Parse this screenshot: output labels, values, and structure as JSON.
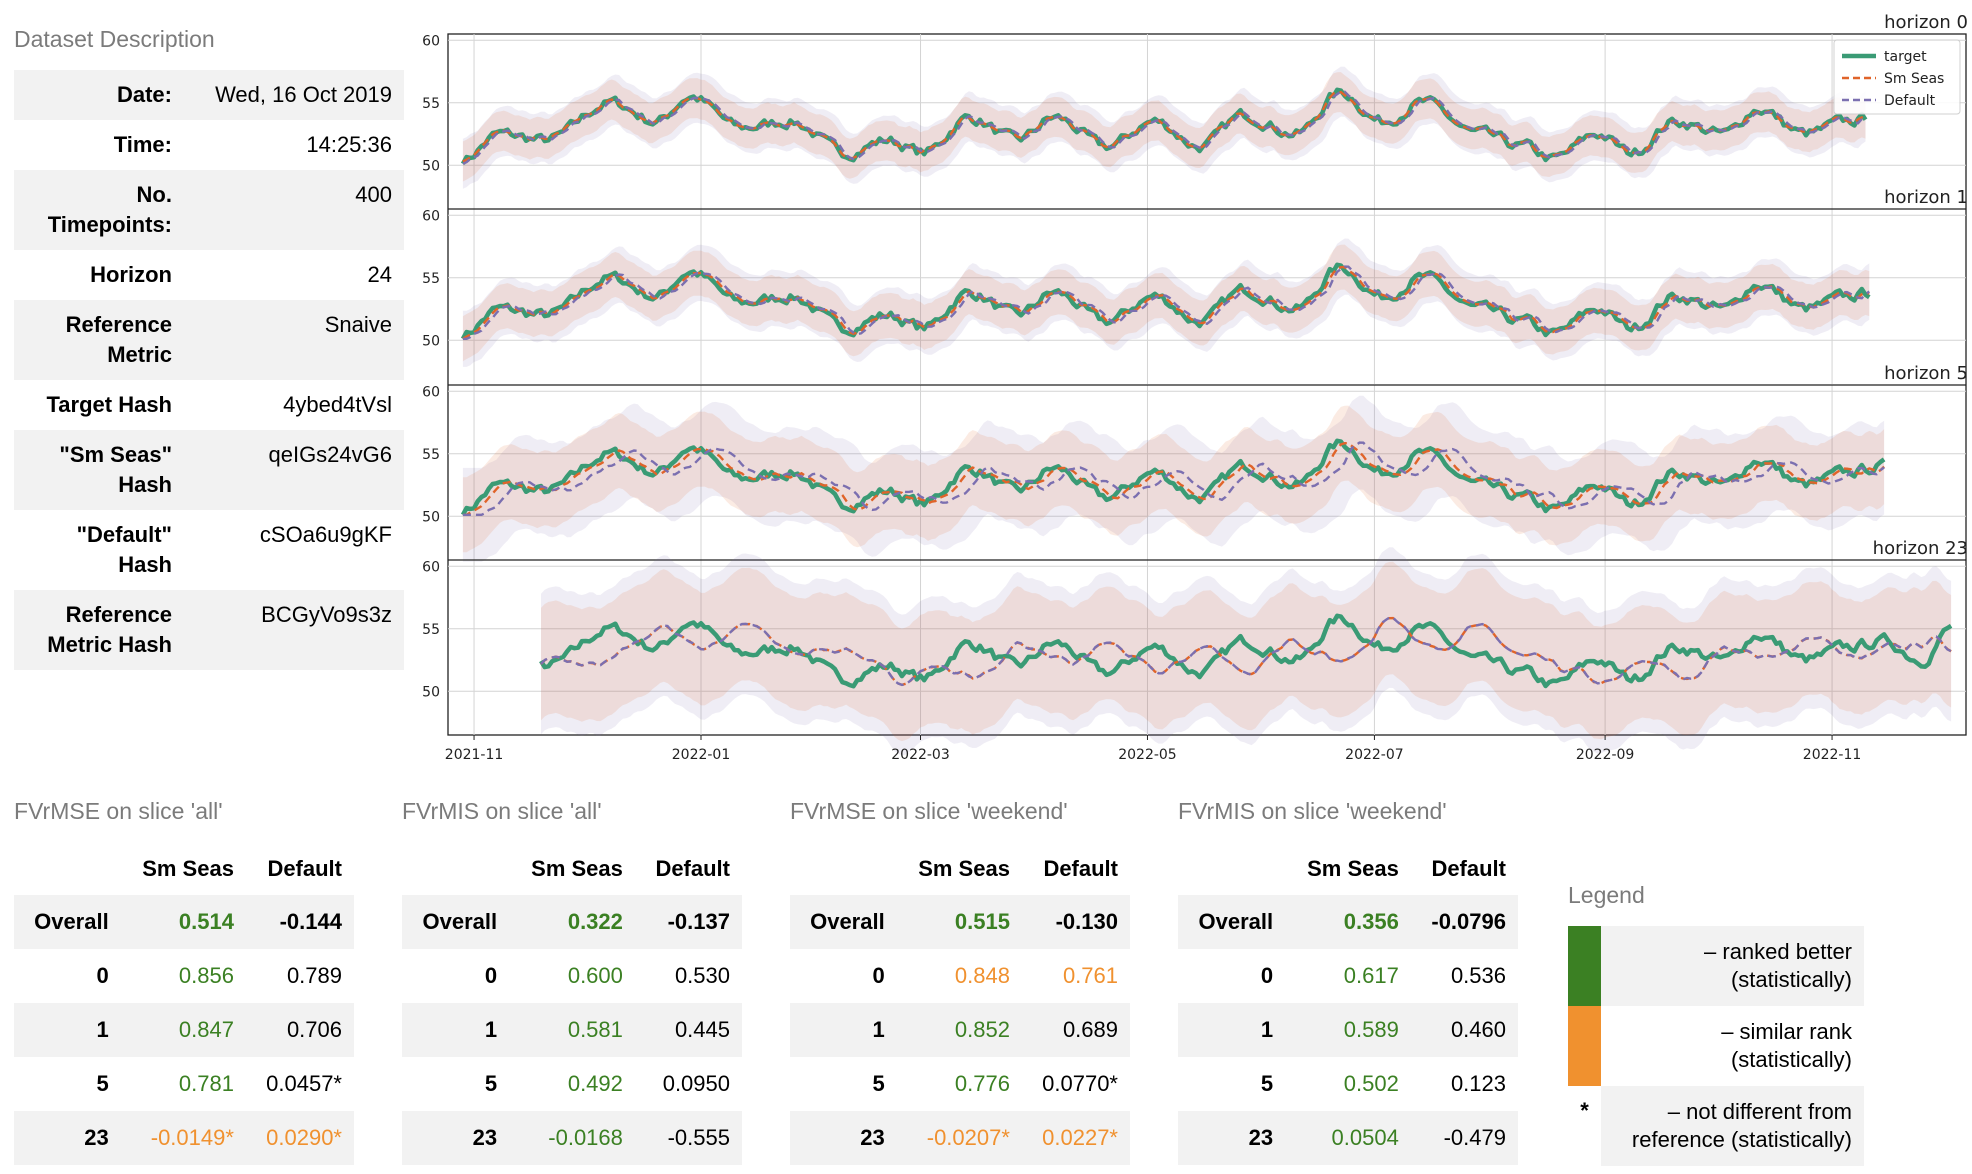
{
  "description": {
    "title": "Dataset Description",
    "rows": [
      {
        "key": "Date:",
        "value": "Wed, 16 Oct 2019"
      },
      {
        "key": "Time:",
        "value": "14:25:36"
      },
      {
        "key": "No. Timepoints:",
        "value": "400"
      },
      {
        "key": "Horizon",
        "value": "24"
      },
      {
        "key": "Reference Metric",
        "value": "Snaive"
      },
      {
        "key": "Target Hash",
        "value": "4ybed4tVsl"
      },
      {
        "key": "\"Sm Seas\" Hash",
        "value": "qeIGs24vG6"
      },
      {
        "key": "\"Default\" Hash",
        "value": "cSOa6u9gKF"
      },
      {
        "key": "Reference Metric Hash",
        "value": "BCGyVo9s3z"
      }
    ]
  },
  "colors": {
    "target": "#3a9b75",
    "sm_seas": "#e0642a",
    "default": "#7b6fb0",
    "better": "#3b8023",
    "similar": "#f0912f"
  },
  "chart_data": {
    "type": "line",
    "x_tick_labels": [
      "2021-11",
      "2022-01",
      "2022-03",
      "2022-05",
      "2022-07",
      "2022-09",
      "2022-11"
    ],
    "y_ticks": [
      50,
      55,
      60
    ],
    "ylim": [
      46.5,
      60.5
    ],
    "legend": [
      "target",
      "Sm Seas",
      "Default"
    ],
    "legend_position": "top-right",
    "series_names": [
      "target",
      "Sm Seas",
      "Default"
    ],
    "panels": [
      {
        "title": "horizon 0",
        "start": "2021-10-29",
        "end": "2022-11-10",
        "lag_default": 1,
        "lag_sm": 0,
        "band": 1.6
      },
      {
        "title": "horizon 1",
        "start": "2021-10-29",
        "end": "2022-11-11",
        "lag_default": 2,
        "lag_sm": 1,
        "band": 1.8
      },
      {
        "title": "horizon 5",
        "start": "2021-10-29",
        "end": "2022-11-15",
        "lag_default": 6,
        "lag_sm": 2,
        "band": 3.0
      },
      {
        "title": "horizon 23",
        "start": "2021-11-19",
        "end": "2022-12-03",
        "lag_default": 14,
        "lag_sm": 14,
        "band": 4.5
      }
    ],
    "target_anchor_dates": [
      "2021-10-29",
      "2021-11-08",
      "2021-11-20",
      "2021-12-08",
      "2021-12-20",
      "2021-12-29",
      "2022-01-12",
      "2022-01-25",
      "2022-02-09",
      "2022-02-20",
      "2022-03-02",
      "2022-03-14",
      "2022-03-27",
      "2022-04-06",
      "2022-04-20",
      "2022-05-03",
      "2022-05-15",
      "2022-05-27",
      "2022-06-10",
      "2022-06-22",
      "2022-07-03",
      "2022-07-14",
      "2022-07-29",
      "2022-08-10",
      "2022-08-18",
      "2022-08-30",
      "2022-09-08",
      "2022-09-20",
      "2022-10-03",
      "2022-10-12",
      "2022-10-25",
      "2022-11-05",
      "2022-11-15",
      "2022-11-25",
      "2022-12-03"
    ],
    "target_anchor_values": [
      50.5,
      52.5,
      52.0,
      55.0,
      53.5,
      55.5,
      53.0,
      53.5,
      51.0,
      52.0,
      51.0,
      53.8,
      52.0,
      53.8,
      51.5,
      53.5,
      51.5,
      54.0,
      52.5,
      55.8,
      53.5,
      55.0,
      52.5,
      51.5,
      50.5,
      52.5,
      51.0,
      53.5,
      52.5,
      54.5,
      52.5,
      53.5,
      54.0,
      52.5,
      55.0
    ]
  },
  "metric_tables": [
    {
      "title": "FVrMSE on slice 'all'",
      "columns": [
        "Sm Seas",
        "Default"
      ],
      "rows": [
        {
          "label": "Overall",
          "values": [
            "0.514",
            "-0.144"
          ],
          "classes": [
            "better",
            "none"
          ]
        },
        {
          "label": "0",
          "values": [
            "0.856",
            "0.789"
          ],
          "classes": [
            "better",
            "none"
          ]
        },
        {
          "label": "1",
          "values": [
            "0.847",
            "0.706"
          ],
          "classes": [
            "better",
            "none"
          ]
        },
        {
          "label": "5",
          "values": [
            "0.781",
            "0.0457*"
          ],
          "classes": [
            "better",
            "none"
          ]
        },
        {
          "label": "23",
          "values": [
            "-0.0149*",
            "0.0290*"
          ],
          "classes": [
            "similar",
            "similar"
          ]
        }
      ]
    },
    {
      "title": "FVrMIS on slice 'all'",
      "columns": [
        "Sm Seas",
        "Default"
      ],
      "rows": [
        {
          "label": "Overall",
          "values": [
            "0.322",
            "-0.137"
          ],
          "classes": [
            "better",
            "none"
          ]
        },
        {
          "label": "0",
          "values": [
            "0.600",
            "0.530"
          ],
          "classes": [
            "better",
            "none"
          ]
        },
        {
          "label": "1",
          "values": [
            "0.581",
            "0.445"
          ],
          "classes": [
            "better",
            "none"
          ]
        },
        {
          "label": "5",
          "values": [
            "0.492",
            "0.0950"
          ],
          "classes": [
            "better",
            "none"
          ]
        },
        {
          "label": "23",
          "values": [
            "-0.0168",
            "-0.555"
          ],
          "classes": [
            "better",
            "none"
          ]
        }
      ]
    },
    {
      "title": "FVrMSE on slice 'weekend'",
      "columns": [
        "Sm Seas",
        "Default"
      ],
      "rows": [
        {
          "label": "Overall",
          "values": [
            "0.515",
            "-0.130"
          ],
          "classes": [
            "better",
            "none"
          ]
        },
        {
          "label": "0",
          "values": [
            "0.848",
            "0.761"
          ],
          "classes": [
            "similar",
            "similar"
          ]
        },
        {
          "label": "1",
          "values": [
            "0.852",
            "0.689"
          ],
          "classes": [
            "better",
            "none"
          ]
        },
        {
          "label": "5",
          "values": [
            "0.776",
            "0.0770*"
          ],
          "classes": [
            "better",
            "none"
          ]
        },
        {
          "label": "23",
          "values": [
            "-0.0207*",
            "0.0227*"
          ],
          "classes": [
            "similar",
            "similar"
          ]
        }
      ]
    },
    {
      "title": "FVrMIS on slice 'weekend'",
      "columns": [
        "Sm Seas",
        "Default"
      ],
      "rows": [
        {
          "label": "Overall",
          "values": [
            "0.356",
            "-0.0796"
          ],
          "classes": [
            "better",
            "none"
          ]
        },
        {
          "label": "0",
          "values": [
            "0.617",
            "0.536"
          ],
          "classes": [
            "better",
            "none"
          ]
        },
        {
          "label": "1",
          "values": [
            "0.589",
            "0.460"
          ],
          "classes": [
            "better",
            "none"
          ]
        },
        {
          "label": "5",
          "values": [
            "0.502",
            "0.123"
          ],
          "classes": [
            "better",
            "none"
          ]
        },
        {
          "label": "23",
          "values": [
            "0.0504",
            "-0.479"
          ],
          "classes": [
            "better",
            "none"
          ]
        }
      ]
    }
  ],
  "legend": {
    "title": "Legend",
    "items": [
      {
        "swatch": "",
        "text": "– ranked better (statistically)",
        "color": "#3b8023"
      },
      {
        "swatch": "",
        "text": "– similar rank (statistically)",
        "color": "#f0912f"
      },
      {
        "swatch": "*",
        "text": "– not different from reference (statistically)",
        "color": ""
      }
    ]
  }
}
